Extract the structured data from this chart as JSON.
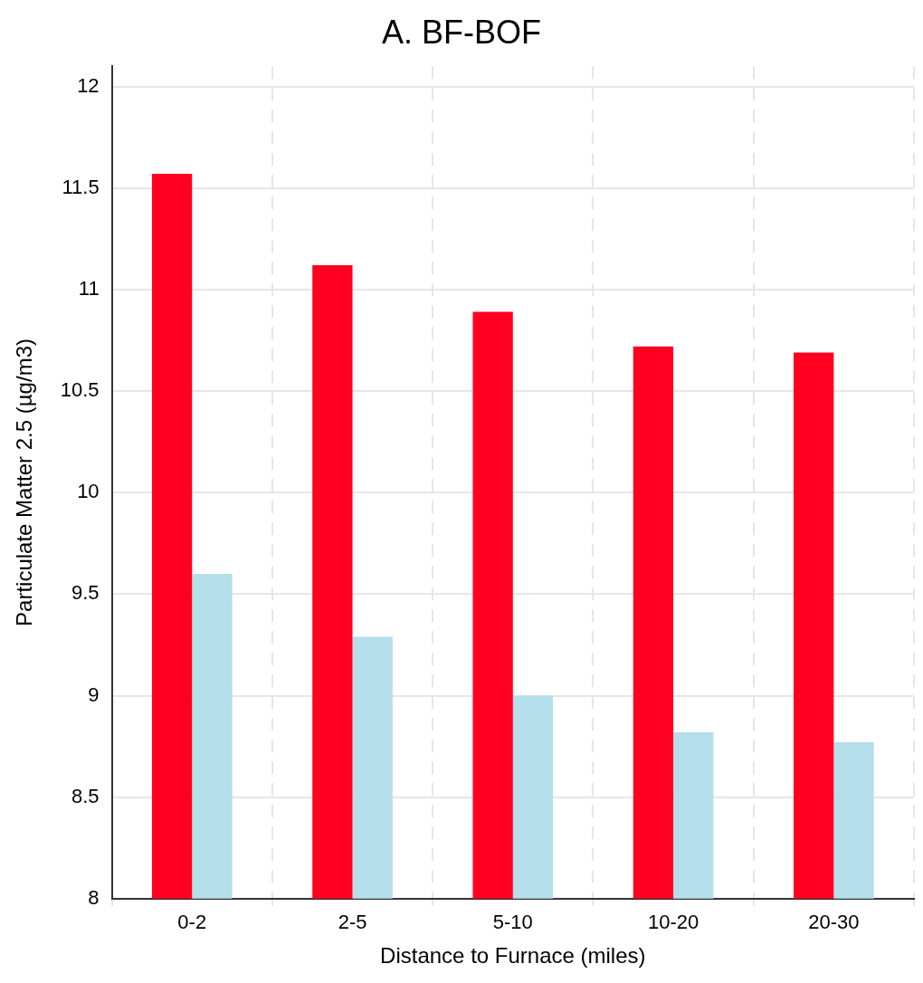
{
  "chart_data": {
    "type": "bar",
    "title": "A. BF-BOF",
    "xlabel": "Distance to Furnace (miles)",
    "ylabel": "Particulate Matter 2.5 (µg/m3)",
    "categories": [
      "0-2",
      "2-5",
      "5-10",
      "10-20",
      "20-30"
    ],
    "series": [
      {
        "color": "#ff0020",
        "values": [
          11.57,
          11.12,
          10.89,
          10.72,
          10.69
        ]
      },
      {
        "color": "#b4dfeb",
        "values": [
          9.6,
          9.29,
          9.0,
          8.82,
          8.77
        ]
      }
    ],
    "ylim": [
      8,
      12.1
    ],
    "yticks": [
      8,
      8.5,
      9,
      9.5,
      10,
      10.5,
      11,
      11.5,
      12
    ],
    "grid": true
  }
}
